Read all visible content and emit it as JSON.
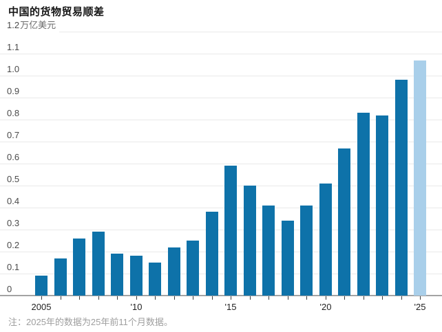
{
  "chart_data": {
    "type": "bar",
    "title": "中国的货物贸易顺差",
    "ylabel": "万亿美元",
    "xlabel": "",
    "categories": [
      2005,
      2006,
      2007,
      2008,
      2009,
      2010,
      2011,
      2012,
      2013,
      2014,
      2015,
      2016,
      2017,
      2018,
      2019,
      2020,
      2021,
      2022,
      2023,
      2024,
      2025
    ],
    "values": [
      0.09,
      0.17,
      0.26,
      0.29,
      0.19,
      0.18,
      0.15,
      0.22,
      0.25,
      0.38,
      0.59,
      0.5,
      0.41,
      0.34,
      0.41,
      0.51,
      0.67,
      0.83,
      0.82,
      0.98,
      1.07
    ],
    "ylim": [
      0,
      1.2
    ],
    "ytick_labels": [
      "0",
      "0.1",
      "0.2",
      "0.3",
      "0.4",
      "0.5",
      "0.6",
      "0.7",
      "0.8",
      "0.9",
      "1.0",
      "1.1",
      "1.2"
    ],
    "xticks": [
      {
        "index": 0,
        "label": "2005"
      },
      {
        "index": 5,
        "label": "'10"
      },
      {
        "index": 10,
        "label": "'15"
      },
      {
        "index": 15,
        "label": "'20"
      },
      {
        "index": 20,
        "label": "'25"
      }
    ],
    "grid": "horizontal",
    "legend_position": "none",
    "highlight_last_bar": true,
    "colors": {
      "bar": "#0e72a9",
      "bar_highlight": "#a9cfea",
      "gridline": "#e9e9e9",
      "axis": "#a3a3a3"
    }
  },
  "footnote": "注：2025年的数据为25年前11个月数据。"
}
